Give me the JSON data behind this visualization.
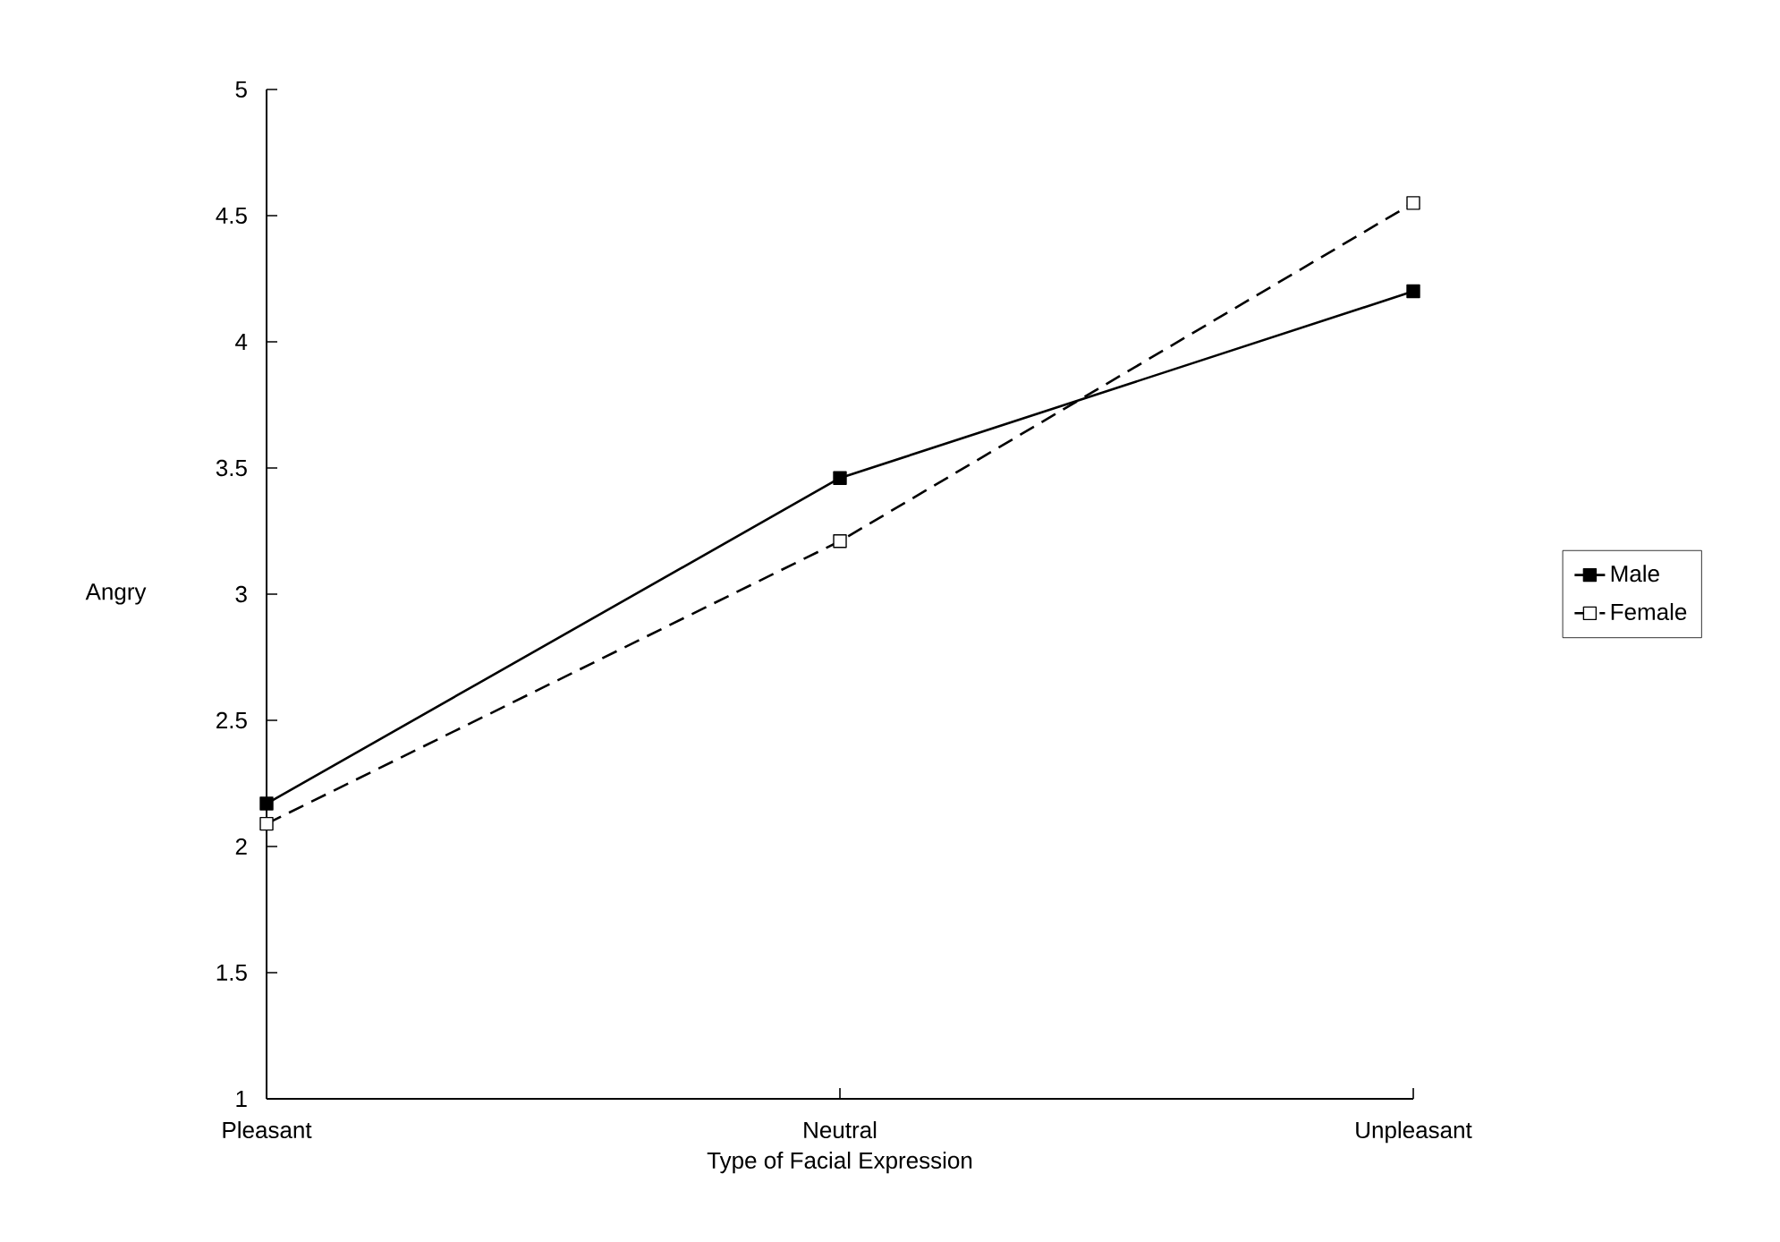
{
  "chart_data": {
    "type": "line",
    "xlabel": "Type of Facial Expression",
    "ylabel": "Angry",
    "categories": [
      "Pleasant",
      "Neutral",
      "Unpleasant"
    ],
    "series": [
      {
        "name": "Male",
        "color": "#000000",
        "values": [
          2.17,
          3.46,
          4.2
        ],
        "line_style": "solid"
      },
      {
        "name": "Female",
        "color": "#000000",
        "values": [
          2.09,
          3.21,
          4.55
        ],
        "line_style": "dashed"
      }
    ],
    "ylim": [
      1,
      5
    ],
    "yticks": [
      1,
      1.5,
      2,
      2.5,
      3,
      3.5,
      4,
      4.5,
      5
    ],
    "marker": "square",
    "grid": false,
    "legend": "right"
  }
}
